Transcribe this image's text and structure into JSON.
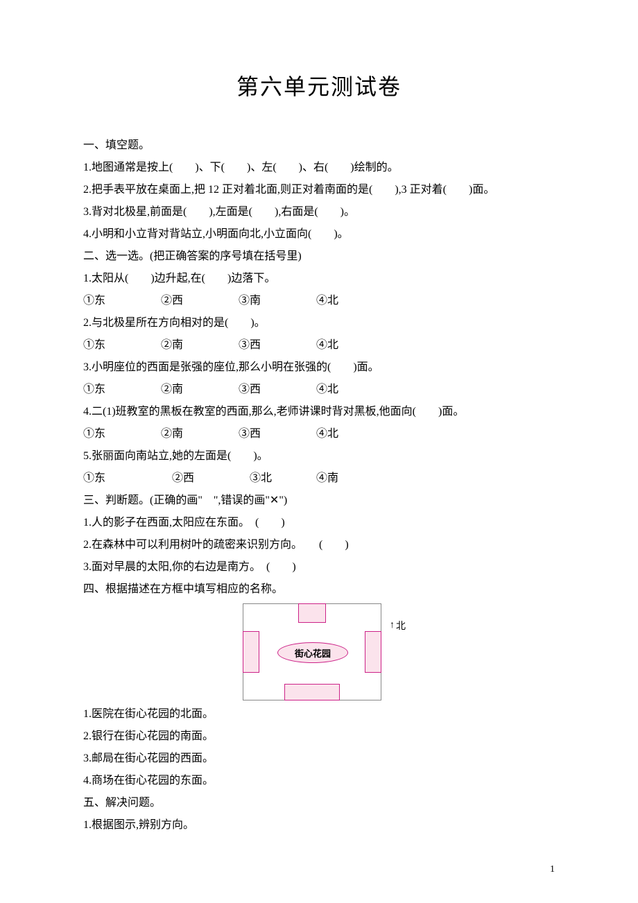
{
  "title": "第六单元测试卷",
  "section1": {
    "heading": "一、填空题。",
    "q1": "1.地图通常是按上(　　)、下(　　)、左(　　)、右(　　)绘制的。",
    "q2": "2.把手表平放在桌面上,把 12 正对着北面,则正对着南面的是(　　),3 正对着(　　)面。",
    "q2b": "",
    "q3": "3.背对北极星,前面是(　　),左面是(　　),右面是(　　)。",
    "q4": "4.小明和小立背对背站立,小明面向北,小立面向(　　)。"
  },
  "section2": {
    "heading": "二、选一选。(把正确答案的序号填在括号里)",
    "q1": "1.太阳从(　　)边升起,在(　　)边落下。",
    "q1opts": "①东　　　　　②西　　　　　③南　　　　　④北",
    "q2": "2.与北极星所在方向相对的是(　　)。",
    "q2opts": "①东　　　　　②南　　　　　③西　　　　　④北",
    "q3": "3.小明座位的西面是张强的座位,那么小明在张强的(　　)面。",
    "q3opts": "①东　　　　　②南　　　　　③西　　　　　④北",
    "q4": "4.二(1)班教室的黑板在教室的西面,那么,老师讲课时背对黑板,他面向(　　)面。",
    "q4opts": "①东　　　　　②南　　　　　③西　　　　　④北",
    "q5": "5.张丽面向南站立,她的左面是(　　)。",
    "q5opts": "①东　　　　　　②西　　　　　③北　　　　④南"
  },
  "section3": {
    "heading": "三、判断题。(正确的画\"　\",错误的画\"✕\")",
    "q1": "1.人的影子在西面,太阳应在东面。　(　　)",
    "q2": "2.在森林中可以利用树叶的疏密来识别方向。　　(　　)",
    "q3": "3.面对早晨的太阳,你的右边是南方。　(　　)"
  },
  "section4": {
    "heading": "四、根据描述在方框中填写相应的名称。",
    "diagram": {
      "center_label": "街心花园",
      "north_marker": "北",
      "box_colors": {
        "fill": "#fbe3ec",
        "border": "#cc2288"
      }
    },
    "q1": "1.医院在街心花园的北面。",
    "q2": "2.银行在街心花园的南面。",
    "q3": "3.邮局在街心花园的西面。",
    "q4": "4.商场在街心花园的东面。"
  },
  "section5": {
    "heading": "五、解决问题。",
    "q1": "1.根据图示,辨别方向。"
  },
  "page_number": "1"
}
